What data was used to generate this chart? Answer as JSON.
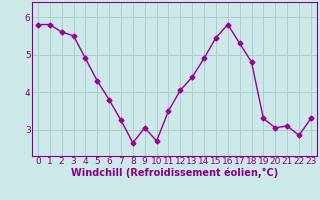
{
  "x": [
    0,
    1,
    2,
    3,
    4,
    5,
    6,
    7,
    8,
    9,
    10,
    11,
    12,
    13,
    14,
    15,
    16,
    17,
    18,
    19,
    20,
    21,
    22,
    23
  ],
  "y": [
    5.8,
    5.8,
    5.6,
    5.5,
    4.9,
    4.3,
    3.8,
    3.25,
    2.65,
    3.05,
    2.7,
    3.5,
    4.05,
    4.4,
    4.9,
    5.45,
    5.8,
    5.3,
    4.8,
    3.3,
    3.05,
    3.1,
    2.85,
    3.3
  ],
  "line_color": "#990099",
  "marker": "D",
  "marker_size": 2.5,
  "line_width": 1.0,
  "xlabel": "Windchill (Refroidissement éolien,°C)",
  "xlim": [
    -0.5,
    23.5
  ],
  "ylim": [
    2.3,
    6.4
  ],
  "yticks": [
    3,
    4,
    5,
    6
  ],
  "xtick_labels": [
    "0",
    "1",
    "2",
    "3",
    "4",
    "5",
    "6",
    "7",
    "8",
    "9",
    "10",
    "11",
    "12",
    "13",
    "14",
    "15",
    "16",
    "17",
    "18",
    "19",
    "20",
    "21",
    "22",
    "23"
  ],
  "grid_color": "#aacfcf",
  "bg_color": "#cce8e8",
  "xlabel_fontsize": 7,
  "tick_fontsize": 6.5,
  "label_color": "#880088"
}
